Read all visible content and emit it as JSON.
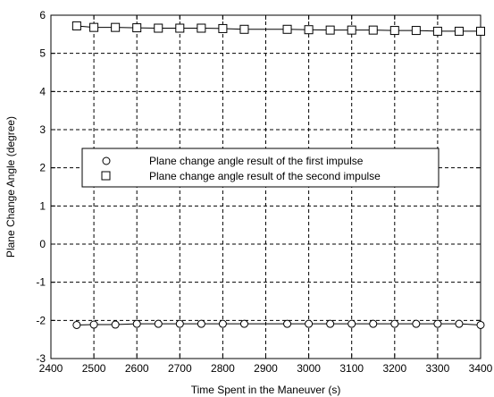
{
  "chart_data": {
    "type": "line",
    "title": "",
    "xlabel": "Time Spent in the Maneuver (s)",
    "ylabel": "Plane Change Angle (degree)",
    "xlim": [
      2400,
      3400
    ],
    "ylim": [
      -3,
      6
    ],
    "xticks": [
      2400,
      2500,
      2600,
      2700,
      2800,
      2900,
      3000,
      3100,
      3200,
      3300,
      3400
    ],
    "yticks": [
      -3,
      -2,
      -1,
      0,
      1,
      2,
      3,
      4,
      5,
      6
    ],
    "xtick_labels": [
      "2400",
      "2500",
      "2600",
      "2700",
      "2800",
      "2900",
      "3000",
      "3100",
      "3200",
      "3300",
      "3400"
    ],
    "ytick_labels": [
      "-3",
      "-2",
      "-1",
      "0",
      "1",
      "2",
      "3",
      "4",
      "5",
      "6"
    ],
    "grid": true,
    "legend_position": "center-left",
    "x": [
      2460,
      2500,
      2550,
      2600,
      2650,
      2700,
      2750,
      2800,
      2850,
      2950,
      3000,
      3050,
      3100,
      3150,
      3200,
      3250,
      3300,
      3350,
      3400
    ],
    "series": [
      {
        "name": "Plane change angle result of the first impulse",
        "marker": "circle",
        "color": "#000000",
        "values": [
          -2.12,
          -2.11,
          -2.11,
          -2.09,
          -2.09,
          -2.09,
          -2.09,
          -2.09,
          -2.09,
          -2.09,
          -2.09,
          -2.09,
          -2.09,
          -2.09,
          -2.09,
          -2.09,
          -2.09,
          -2.09,
          -2.12
        ]
      },
      {
        "name": "Plane change angle result of the second impulse",
        "marker": "square",
        "color": "#000000",
        "values": [
          5.72,
          5.68,
          5.68,
          5.67,
          5.66,
          5.66,
          5.66,
          5.65,
          5.63,
          5.63,
          5.62,
          5.61,
          5.61,
          5.61,
          5.6,
          5.6,
          5.58,
          5.58,
          5.58
        ]
      }
    ]
  }
}
